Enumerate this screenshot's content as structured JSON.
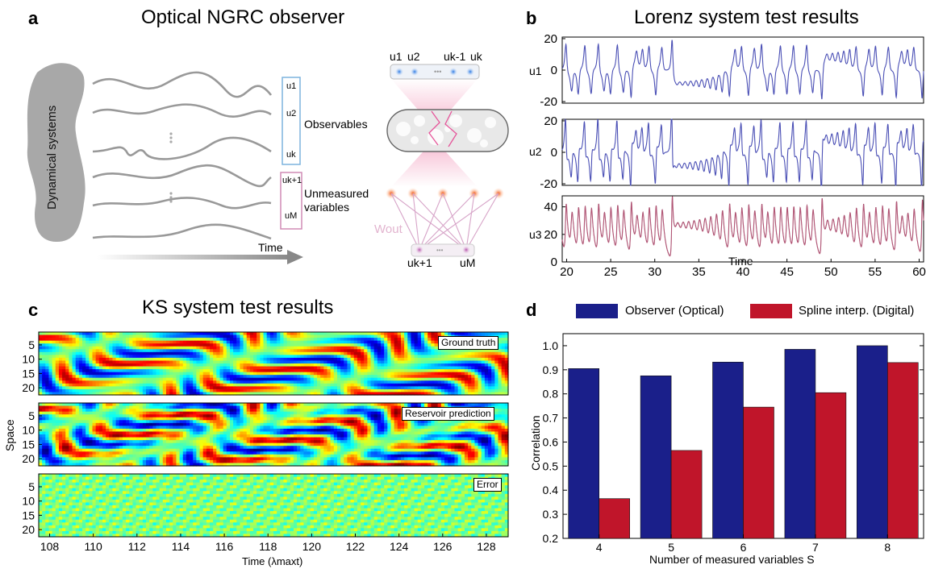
{
  "panel_a": {
    "letter": "a",
    "title": "Optical NGRC observer",
    "dynamical_systems": "Dynamical systems",
    "observables": "Observables",
    "unmeasured_line1": "Unmeasured",
    "unmeasured_line2": "variables",
    "time": "Time",
    "obs_u1": "u1",
    "obs_u2": "u2",
    "obs_uk": "uk",
    "obs_uk1": "uk+1",
    "obs_uM": "uM",
    "top_u1": "u1",
    "top_u2": "u2",
    "top_uk1": "uk-1",
    "top_uk": "uk",
    "bot_uk1": "uk+1",
    "bot_uM": "uM",
    "wout": "Wout"
  },
  "panel_b": {
    "letter": "b",
    "title": "Lorenz system test results",
    "xlabel": "Time",
    "rows": [
      {
        "label": "u1"
      },
      {
        "label": "u2"
      },
      {
        "label": "u3"
      }
    ],
    "colors": {
      "u1": "#4a4fb5",
      "u2": "#4a4fb5",
      "u3": "#a34a6a"
    }
  },
  "panel_c": {
    "letter": "c",
    "title": "KS system test results",
    "ylabel": "Space",
    "xlabel": "Time (λmaxt)",
    "tags": [
      "Ground truth",
      "Reservoir prediction",
      "Error"
    ]
  },
  "panel_d": {
    "letter": "d",
    "legend": [
      "Observer (Optical)",
      "Spline interp. (Digital)"
    ],
    "colors": {
      "optical": "#1a1f8a",
      "digital": "#c0152a"
    }
  },
  "chart_data": [
    {
      "type": "line",
      "title": "Lorenz system test results",
      "xlabel": "Time",
      "xlim": [
        19.5,
        60.5
      ],
      "xticks": [
        20,
        25,
        30,
        35,
        40,
        45,
        50,
        55,
        60
      ],
      "series": [
        {
          "name": "u1",
          "ylim": [
            -21,
            21
          ],
          "yticks": [
            -20,
            0,
            20
          ]
        },
        {
          "name": "u2",
          "ylim": [
            -21,
            21
          ],
          "yticks": [
            -20,
            0,
            20
          ]
        },
        {
          "name": "u3",
          "ylim": [
            0,
            48
          ],
          "yticks": [
            0,
            20,
            40
          ]
        }
      ]
    },
    {
      "type": "heatmap",
      "title": "KS system test results",
      "xlabel": "Time (λmaxt)",
      "ylabel": "Space",
      "xlim": [
        107.5,
        129
      ],
      "xticks": [
        108,
        110,
        112,
        114,
        116,
        118,
        120,
        122,
        124,
        126,
        128
      ],
      "yticks": [
        5,
        10,
        15,
        20
      ],
      "rows": [
        "Ground truth",
        "Reservoir prediction",
        "Error"
      ]
    },
    {
      "type": "bar",
      "categories": [
        "4",
        "5",
        "6",
        "7",
        "8"
      ],
      "series": [
        {
          "name": "Observer (Optical)",
          "values": [
            0.905,
            0.875,
            0.932,
            0.985,
            1.0
          ]
        },
        {
          "name": "Spline interp. (Digital)",
          "values": [
            0.365,
            0.565,
            0.745,
            0.805,
            0.93
          ]
        }
      ],
      "xlabel": "Number of measured variables S",
      "ylabel": "Correlation",
      "ylim": [
        0.2,
        1.05
      ],
      "yticks": [
        0.2,
        0.3,
        0.4,
        0.5,
        0.6,
        0.7,
        0.8,
        0.9,
        1.0
      ]
    }
  ]
}
